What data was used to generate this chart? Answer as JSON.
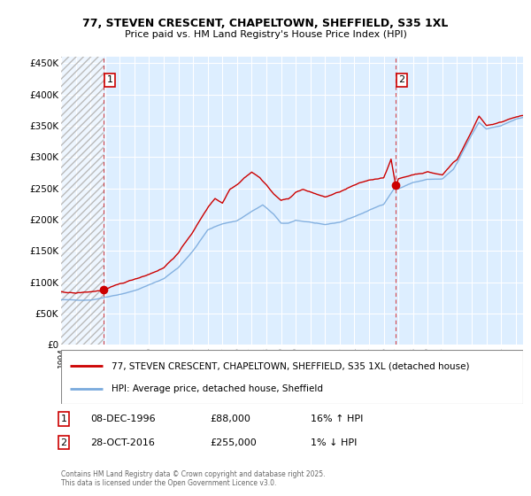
{
  "title_line1": "77, STEVEN CRESCENT, CHAPELTOWN, SHEFFIELD, S35 1XL",
  "title_line2": "Price paid vs. HM Land Registry's House Price Index (HPI)",
  "xlim_start": 1994.0,
  "xlim_end": 2025.5,
  "ylim_min": 0,
  "ylim_max": 460000,
  "yticks": [
    0,
    50000,
    100000,
    150000,
    200000,
    250000,
    300000,
    350000,
    400000,
    450000
  ],
  "ytick_labels": [
    "£0",
    "£50K",
    "£100K",
    "£150K",
    "£200K",
    "£250K",
    "£300K",
    "£350K",
    "£400K",
    "£450K"
  ],
  "purchase1_date": 1996.92,
  "purchase1_price": 88000,
  "purchase2_date": 2016.83,
  "purchase2_price": 255000,
  "legend_line1": "77, STEVEN CRESCENT, CHAPELTOWN, SHEFFIELD, S35 1XL (detached house)",
  "legend_line2": "HPI: Average price, detached house, Sheffield",
  "annotation1_date": "08-DEC-1996",
  "annotation1_price": "£88,000",
  "annotation1_hpi": "16% ↑ HPI",
  "annotation2_date": "28-OCT-2016",
  "annotation2_price": "£255,000",
  "annotation2_hpi": "1% ↓ HPI",
  "footer": "Contains HM Land Registry data © Crown copyright and database right 2025.\nThis data is licensed under the Open Government Licence v3.0.",
  "red_color": "#cc0000",
  "blue_color": "#7aaadd",
  "bg_color": "#ddeeff",
  "grid_color": "#ffffff"
}
